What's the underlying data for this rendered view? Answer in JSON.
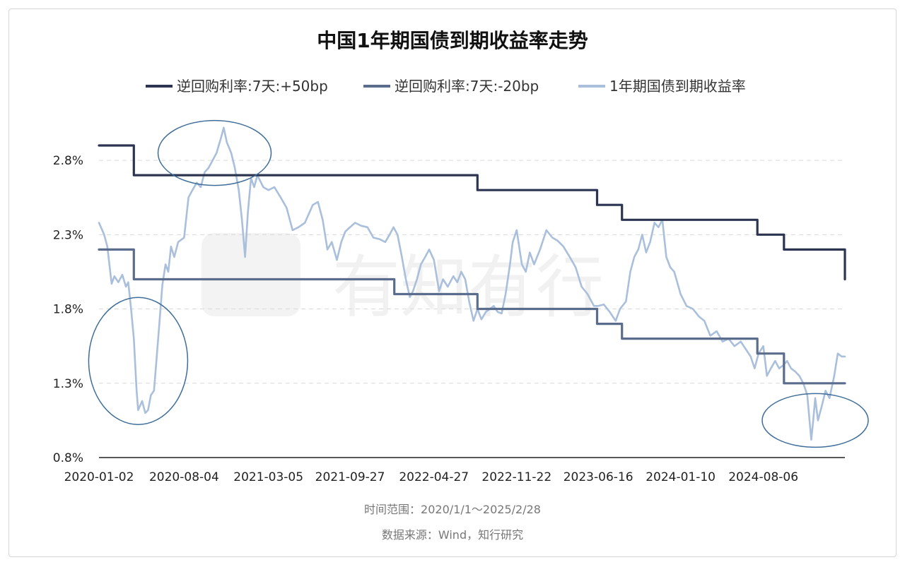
{
  "chart_data": {
    "type": "line",
    "title": "中国1年期国债到期收益率走势",
    "xlabel": "",
    "ylabel": "",
    "x_range": [
      "2020-01-02",
      "2025-02-28"
    ],
    "ylim": [
      0.8,
      3.0
    ],
    "y_ticks": [
      "2.8%",
      "2.3%",
      "1.8%",
      "1.3%",
      "0.8%"
    ],
    "y_tick_values": [
      2.8,
      2.3,
      1.8,
      1.3,
      0.8
    ],
    "x_ticks": [
      "2020-01-02",
      "2020-08-04",
      "2021-03-05",
      "2021-09-27",
      "2022-04-27",
      "2022-11-22",
      "2023-06-16",
      "2024-01-10",
      "2024-08-06"
    ],
    "grid": true,
    "legend_position": "top",
    "watermark": "有知有行",
    "annotations": [
      {
        "shape": "ellipse",
        "date": "2020-04-10",
        "value": 1.45
      },
      {
        "shape": "ellipse",
        "date": "2020-10-20",
        "value": 2.85
      },
      {
        "shape": "ellipse",
        "date": "2024-12-15",
        "value": 1.05
      }
    ],
    "series": [
      {
        "name": "逆回购利率:7天:+50bp",
        "color": "#2b3551",
        "step": true,
        "points": [
          [
            "2020-01-02",
            2.9
          ],
          [
            "2020-02-03",
            2.9
          ],
          [
            "2020-03-30",
            2.7
          ],
          [
            "2022-01-17",
            2.7
          ],
          [
            "2022-08-15",
            2.6
          ],
          [
            "2023-06-13",
            2.5
          ],
          [
            "2023-08-15",
            2.4
          ],
          [
            "2024-07-22",
            2.3
          ],
          [
            "2024-09-27",
            2.2
          ],
          [
            "2025-02-28",
            2.0
          ]
        ]
      },
      {
        "name": "逆回购利率:7天:-20bp",
        "color": "#5b6d8c",
        "step": true,
        "points": [
          [
            "2020-01-02",
            2.2
          ],
          [
            "2020-02-03",
            2.2
          ],
          [
            "2020-03-30",
            2.0
          ],
          [
            "2022-01-17",
            1.9
          ],
          [
            "2022-08-15",
            1.8
          ],
          [
            "2023-06-13",
            1.7
          ],
          [
            "2023-08-15",
            1.6
          ],
          [
            "2024-07-22",
            1.5
          ],
          [
            "2024-09-27",
            1.3
          ],
          [
            "2025-02-28",
            1.3
          ]
        ]
      },
      {
        "name": "1年期国债到期收益率",
        "color": "#a9bfdc",
        "step": false,
        "points": [
          [
            "2020-01-02",
            2.38
          ],
          [
            "2020-01-15",
            2.3
          ],
          [
            "2020-01-23",
            2.22
          ],
          [
            "2020-02-03",
            1.97
          ],
          [
            "2020-02-10",
            2.02
          ],
          [
            "2020-02-20",
            1.98
          ],
          [
            "2020-03-01",
            2.03
          ],
          [
            "2020-03-10",
            1.95
          ],
          [
            "2020-03-16",
            1.98
          ],
          [
            "2020-03-23",
            1.8
          ],
          [
            "2020-03-30",
            1.6
          ],
          [
            "2020-04-06",
            1.25
          ],
          [
            "2020-04-10",
            1.12
          ],
          [
            "2020-04-20",
            1.18
          ],
          [
            "2020-04-28",
            1.1
          ],
          [
            "2020-05-05",
            1.12
          ],
          [
            "2020-05-12",
            1.22
          ],
          [
            "2020-05-20",
            1.25
          ],
          [
            "2020-05-26",
            1.45
          ],
          [
            "2020-06-03",
            1.72
          ],
          [
            "2020-06-10",
            1.96
          ],
          [
            "2020-06-18",
            2.1
          ],
          [
            "2020-06-25",
            2.05
          ],
          [
            "2020-07-02",
            2.22
          ],
          [
            "2020-07-10",
            2.15
          ],
          [
            "2020-07-20",
            2.25
          ],
          [
            "2020-08-04",
            2.28
          ],
          [
            "2020-08-15",
            2.55
          ],
          [
            "2020-08-25",
            2.6
          ],
          [
            "2020-09-05",
            2.65
          ],
          [
            "2020-09-15",
            2.62
          ],
          [
            "2020-09-25",
            2.72
          ],
          [
            "2020-10-05",
            2.75
          ],
          [
            "2020-10-15",
            2.8
          ],
          [
            "2020-10-25",
            2.85
          ],
          [
            "2020-11-05",
            2.95
          ],
          [
            "2020-11-12",
            3.02
          ],
          [
            "2020-11-20",
            2.92
          ],
          [
            "2020-12-01",
            2.85
          ],
          [
            "2020-12-10",
            2.75
          ],
          [
            "2020-12-20",
            2.6
          ],
          [
            "2020-12-28",
            2.4
          ],
          [
            "2021-01-05",
            2.15
          ],
          [
            "2021-01-12",
            2.45
          ],
          [
            "2021-01-20",
            2.68
          ],
          [
            "2021-01-28",
            2.62
          ],
          [
            "2021-02-05",
            2.7
          ],
          [
            "2021-02-20",
            2.62
          ],
          [
            "2021-03-05",
            2.6
          ],
          [
            "2021-03-20",
            2.62
          ],
          [
            "2021-04-05",
            2.55
          ],
          [
            "2021-04-20",
            2.48
          ],
          [
            "2021-05-05",
            2.33
          ],
          [
            "2021-05-20",
            2.35
          ],
          [
            "2021-06-05",
            2.38
          ],
          [
            "2021-06-25",
            2.5
          ],
          [
            "2021-07-08",
            2.52
          ],
          [
            "2021-07-20",
            2.4
          ],
          [
            "2021-08-01",
            2.2
          ],
          [
            "2021-08-12",
            2.25
          ],
          [
            "2021-08-25",
            2.13
          ],
          [
            "2021-09-05",
            2.25
          ],
          [
            "2021-09-15",
            2.32
          ],
          [
            "2021-09-27",
            2.35
          ],
          [
            "2021-10-10",
            2.38
          ],
          [
            "2021-10-25",
            2.36
          ],
          [
            "2021-11-10",
            2.35
          ],
          [
            "2021-11-25",
            2.28
          ],
          [
            "2021-12-10",
            2.27
          ],
          [
            "2021-12-25",
            2.25
          ],
          [
            "2022-01-05",
            2.3
          ],
          [
            "2022-01-15",
            2.35
          ],
          [
            "2022-01-25",
            2.3
          ],
          [
            "2022-02-05",
            2.15
          ],
          [
            "2022-02-15",
            2.0
          ],
          [
            "2022-02-25",
            1.88
          ],
          [
            "2022-03-05",
            1.92
          ],
          [
            "2022-03-15",
            2.0
          ],
          [
            "2022-03-25",
            2.1
          ],
          [
            "2022-04-05",
            2.15
          ],
          [
            "2022-04-15",
            2.2
          ],
          [
            "2022-04-27",
            2.13
          ],
          [
            "2022-05-10",
            1.92
          ],
          [
            "2022-05-20",
            2.0
          ],
          [
            "2022-06-01",
            1.95
          ],
          [
            "2022-06-15",
            2.02
          ],
          [
            "2022-06-25",
            1.98
          ],
          [
            "2022-07-05",
            2.05
          ],
          [
            "2022-07-15",
            2.0
          ],
          [
            "2022-07-25",
            1.85
          ],
          [
            "2022-08-05",
            1.72
          ],
          [
            "2022-08-15",
            1.8
          ],
          [
            "2022-08-25",
            1.73
          ],
          [
            "2022-09-05",
            1.78
          ],
          [
            "2022-09-15",
            1.8
          ],
          [
            "2022-09-25",
            1.82
          ],
          [
            "2022-10-05",
            1.78
          ],
          [
            "2022-10-15",
            1.77
          ],
          [
            "2022-10-25",
            1.9
          ],
          [
            "2022-11-05",
            2.1
          ],
          [
            "2022-11-12",
            2.25
          ],
          [
            "2022-11-22",
            2.33
          ],
          [
            "2022-12-05",
            2.1
          ],
          [
            "2022-12-15",
            2.05
          ],
          [
            "2022-12-25",
            2.18
          ],
          [
            "2023-01-05",
            2.1
          ],
          [
            "2023-01-20",
            2.2
          ],
          [
            "2023-02-05",
            2.33
          ],
          [
            "2023-02-20",
            2.28
          ],
          [
            "2023-03-05",
            2.26
          ],
          [
            "2023-03-20",
            2.22
          ],
          [
            "2023-04-05",
            2.15
          ],
          [
            "2023-04-20",
            2.08
          ],
          [
            "2023-05-05",
            1.95
          ],
          [
            "2023-05-20",
            1.9
          ],
          [
            "2023-06-05",
            1.82
          ],
          [
            "2023-06-16",
            1.82
          ],
          [
            "2023-06-30",
            1.83
          ],
          [
            "2023-07-15",
            1.78
          ],
          [
            "2023-07-30",
            1.72
          ],
          [
            "2023-08-10",
            1.8
          ],
          [
            "2023-08-25",
            1.85
          ],
          [
            "2023-09-05",
            2.05
          ],
          [
            "2023-09-15",
            2.15
          ],
          [
            "2023-09-25",
            2.2
          ],
          [
            "2023-10-05",
            2.3
          ],
          [
            "2023-10-15",
            2.18
          ],
          [
            "2023-10-25",
            2.25
          ],
          [
            "2023-11-05",
            2.38
          ],
          [
            "2023-11-15",
            2.35
          ],
          [
            "2023-11-25",
            2.4
          ],
          [
            "2023-12-05",
            2.15
          ],
          [
            "2023-12-15",
            2.08
          ],
          [
            "2023-12-25",
            2.05
          ],
          [
            "2024-01-10",
            1.9
          ],
          [
            "2024-01-25",
            1.82
          ],
          [
            "2024-02-10",
            1.8
          ],
          [
            "2024-02-25",
            1.75
          ],
          [
            "2024-03-10",
            1.72
          ],
          [
            "2024-03-25",
            1.62
          ],
          [
            "2024-04-10",
            1.65
          ],
          [
            "2024-04-25",
            1.58
          ],
          [
            "2024-05-10",
            1.6
          ],
          [
            "2024-05-25",
            1.55
          ],
          [
            "2024-06-10",
            1.58
          ],
          [
            "2024-06-25",
            1.52
          ],
          [
            "2024-07-05",
            1.48
          ],
          [
            "2024-07-15",
            1.4
          ],
          [
            "2024-07-25",
            1.5
          ],
          [
            "2024-08-06",
            1.55
          ],
          [
            "2024-08-15",
            1.35
          ],
          [
            "2024-08-25",
            1.4
          ],
          [
            "2024-09-05",
            1.45
          ],
          [
            "2024-09-15",
            1.4
          ],
          [
            "2024-09-25",
            1.42
          ],
          [
            "2024-10-05",
            1.45
          ],
          [
            "2024-10-15",
            1.4
          ],
          [
            "2024-10-25",
            1.38
          ],
          [
            "2024-11-05",
            1.35
          ],
          [
            "2024-11-15",
            1.3
          ],
          [
            "2024-11-25",
            1.22
          ],
          [
            "2024-12-05",
            0.92
          ],
          [
            "2024-12-10",
            1.05
          ],
          [
            "2024-12-15",
            1.2
          ],
          [
            "2024-12-22",
            1.05
          ],
          [
            "2025-01-01",
            1.15
          ],
          [
            "2025-01-10",
            1.25
          ],
          [
            "2025-01-20",
            1.2
          ],
          [
            "2025-02-01",
            1.35
          ],
          [
            "2025-02-10",
            1.5
          ],
          [
            "2025-02-20",
            1.48
          ],
          [
            "2025-02-28",
            1.48
          ]
        ]
      }
    ]
  },
  "footer": {
    "time_range": "时间范围：2020/1/1～2025/2/28",
    "source": "数据来源：Wind，知行研究"
  }
}
